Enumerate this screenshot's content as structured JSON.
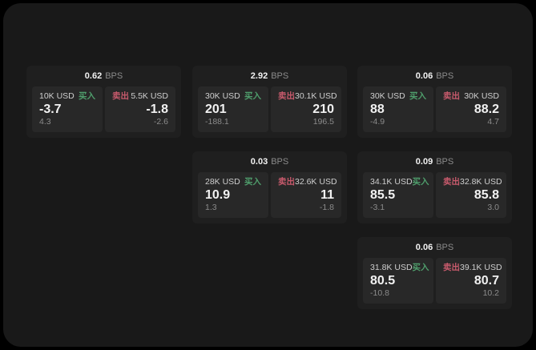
{
  "theme": {
    "page_bg": "#000000",
    "window_bg": "#191919",
    "card_bg": "#1f1f1f",
    "panel_bg": "#282828",
    "buy_color": "#4f9e6c",
    "sell_color": "#c75a6c",
    "text_primary": "#f2f2f2",
    "text_secondary": "#cfcfcf",
    "text_muted": "#8b8b8b"
  },
  "labels": {
    "bps_unit": "BPS",
    "buy": "买入",
    "sell": "卖出"
  },
  "cards": [
    {
      "bps": "0.62",
      "column": 1,
      "row": 1,
      "buy": {
        "amount": "10K USD",
        "price": "-3.7",
        "delta": "4.3"
      },
      "sell": {
        "amount": "5.5K USD",
        "price": "-1.8",
        "delta": "-2.6"
      }
    },
    {
      "bps": "2.92",
      "column": 2,
      "row": 1,
      "buy": {
        "amount": "30K USD",
        "price": "201",
        "delta": "-188.1"
      },
      "sell": {
        "amount": "30.1K USD",
        "price": "210",
        "delta": "196.5"
      }
    },
    {
      "bps": "0.06",
      "column": 3,
      "row": 1,
      "buy": {
        "amount": "30K USD",
        "price": "88",
        "delta": "-4.9"
      },
      "sell": {
        "amount": "30K USD",
        "price": "88.2",
        "delta": "4.7"
      }
    },
    {
      "bps": "0.03",
      "column": 2,
      "row": 2,
      "buy": {
        "amount": "28K USD",
        "price": "10.9",
        "delta": "1.3"
      },
      "sell": {
        "amount": "32.6K USD",
        "price": "11",
        "delta": "-1.8"
      }
    },
    {
      "bps": "0.09",
      "column": 3,
      "row": 2,
      "buy": {
        "amount": "34.1K USD",
        "price": "85.5",
        "delta": "-3.1"
      },
      "sell": {
        "amount": "32.8K USD",
        "price": "85.8",
        "delta": "3.0"
      }
    },
    {
      "bps": "0.06",
      "column": 3,
      "row": 3,
      "buy": {
        "amount": "31.8K USD",
        "price": "80.5",
        "delta": "-10.8"
      },
      "sell": {
        "amount": "39.1K USD",
        "price": "80.7",
        "delta": "10.2"
      }
    }
  ]
}
